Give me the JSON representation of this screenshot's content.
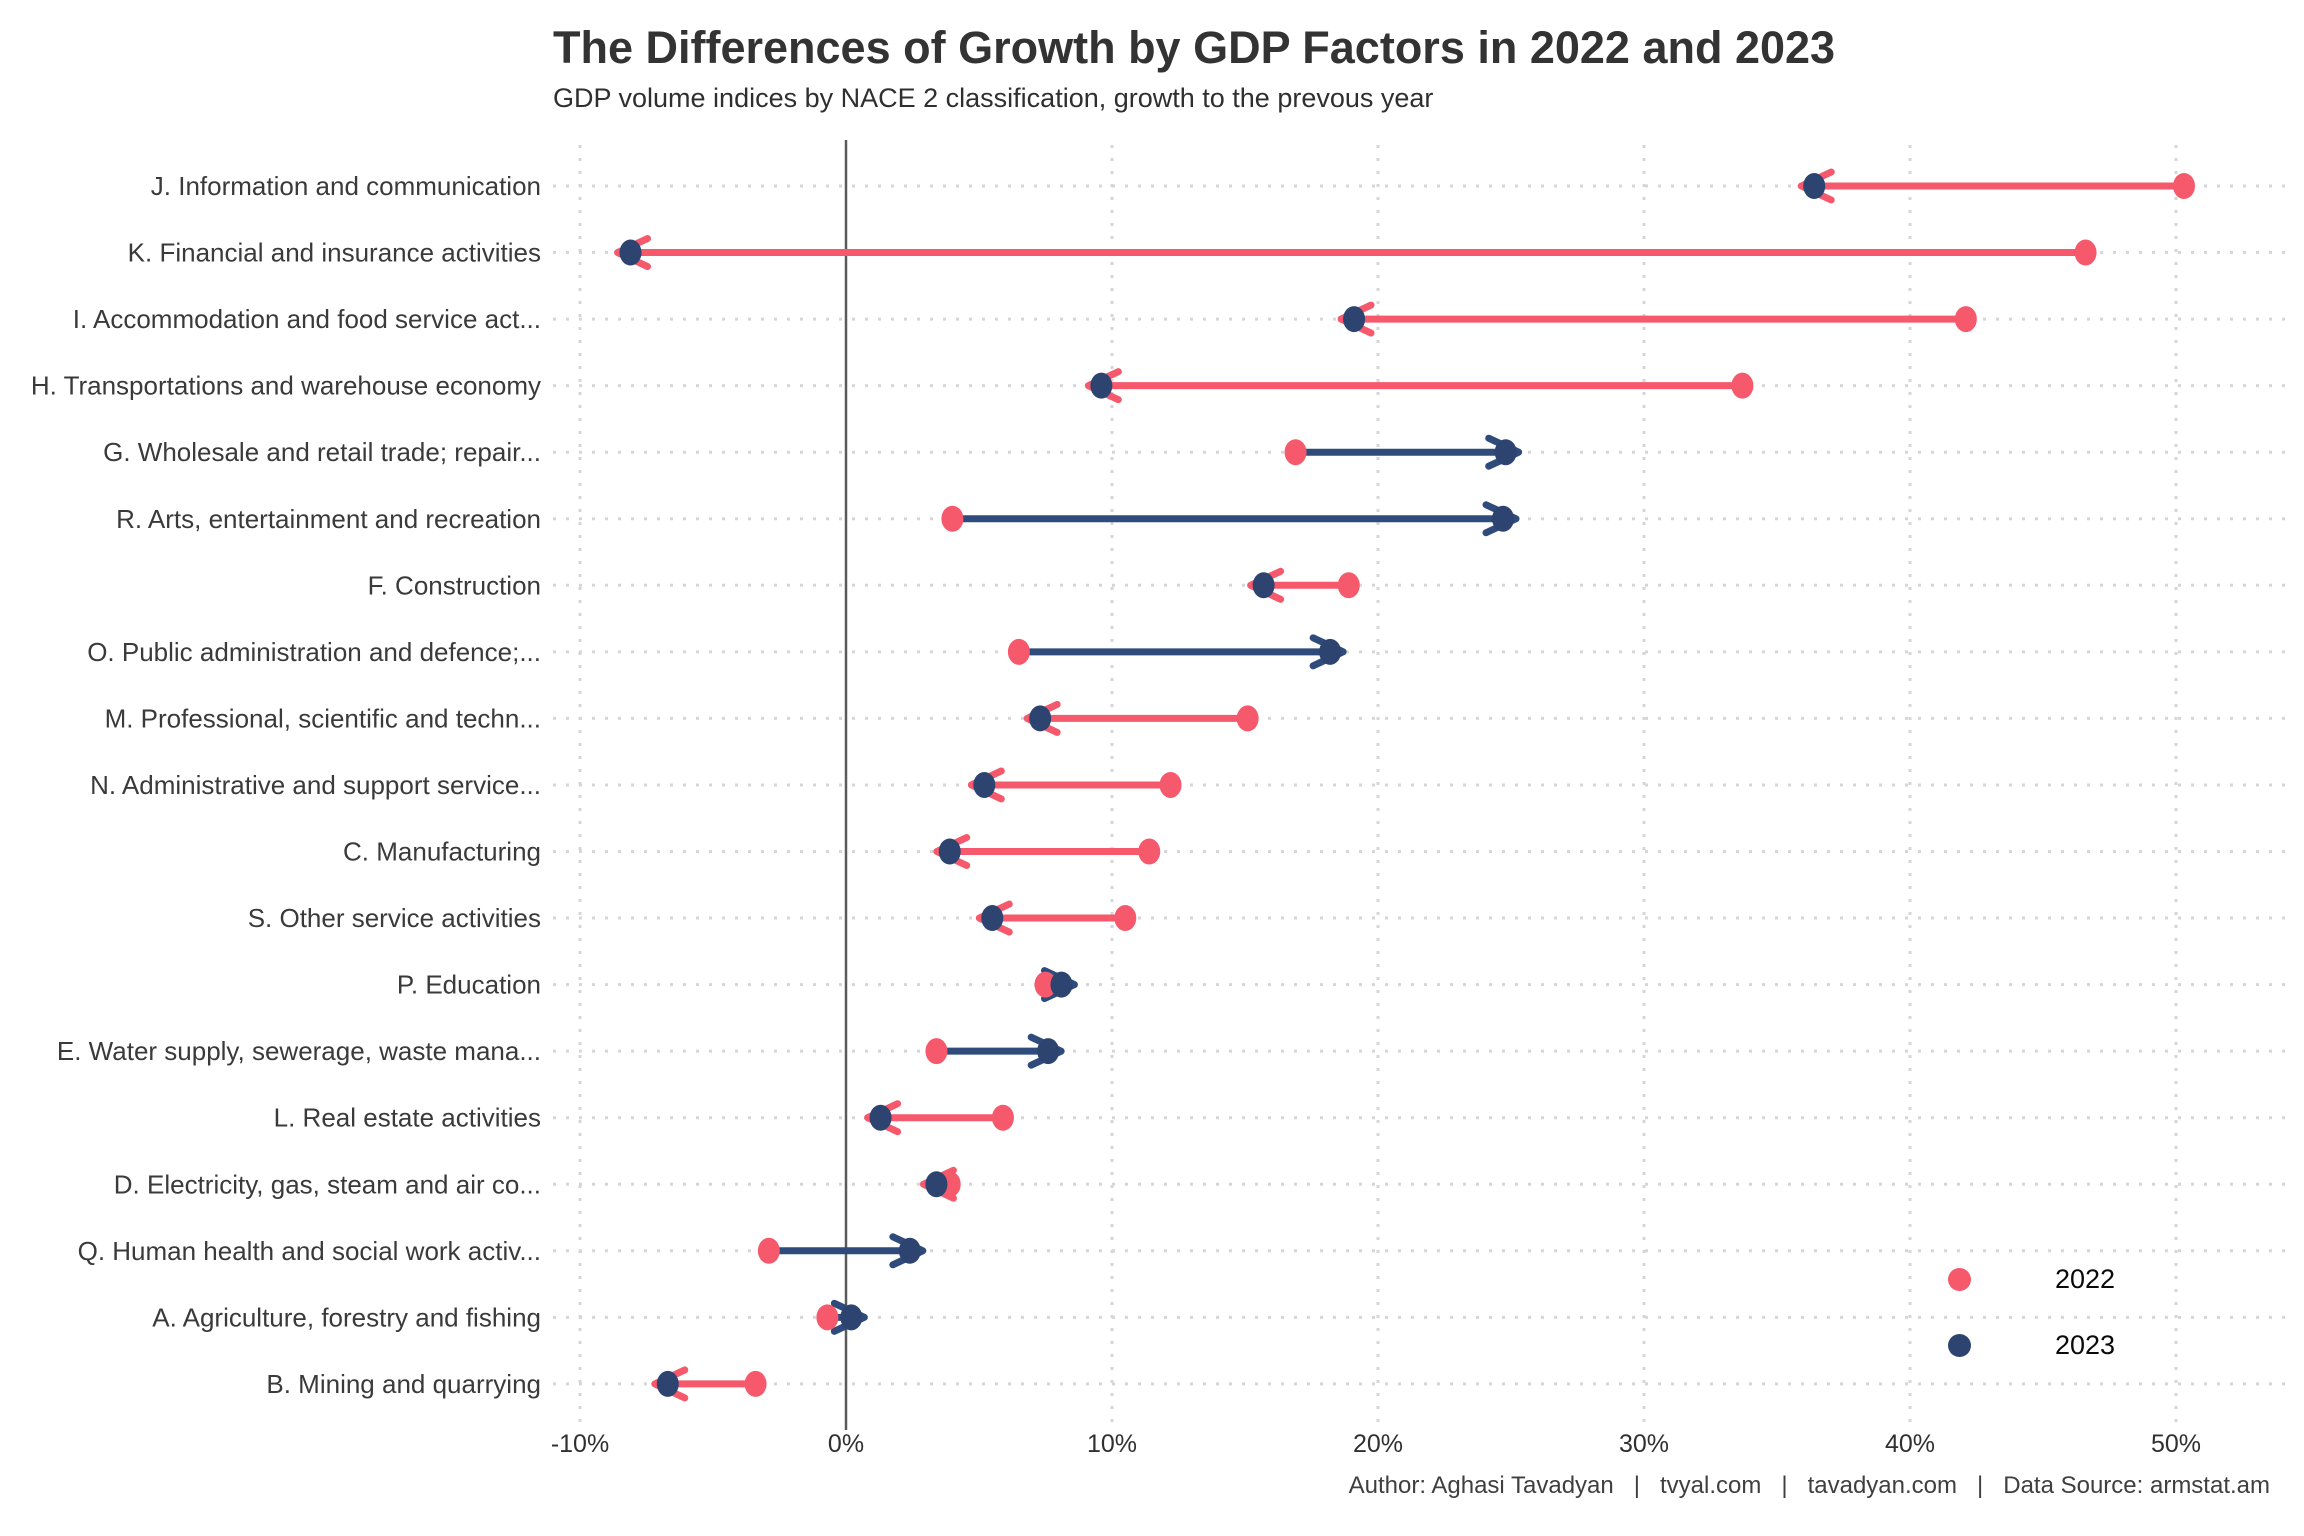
{
  "header": {
    "title": "The Differences of Growth by GDP Factors in 2022 and 2023",
    "subtitle": "GDP volume indices by NACE 2 classification, growth to the prevous year"
  },
  "footer": {
    "credit": "Author: Aghasi Tavadyan   |   tvyal.com   |   tavadyan.com   |   Data Source: armstat.am"
  },
  "chart_data": {
    "type": "dumbbell",
    "orientation": "horizontal",
    "arrow": "from 2022 value to 2023 value",
    "title": "The Differences of Growth by GDP Factors in 2022 and 2023",
    "subtitle": "GDP volume indices by NACE 2 classification, growth to the prevous year",
    "categories": [
      "J. Information and communication",
      "K. Financial and insurance activities",
      "I. Accommodation and food service act...",
      "H. Transportations and warehouse economy",
      "G. Wholesale and retail trade; repair...",
      "R. Arts, entertainment and recreation",
      "F. Construction",
      "O. Public administration and defence;...",
      "M. Professional, scientific and techn...",
      "N. Administrative and support service...",
      "C. Manufacturing",
      "S. Other service activities",
      "P. Education",
      "E. Water supply, sewerage, waste mana...",
      "L. Real estate activities",
      "D. Electricity, gas, steam and air co...",
      "Q. Human health and social work activ...",
      "A. Agriculture, forestry and fishing",
      "B. Mining and quarrying"
    ],
    "series": [
      {
        "name": "2022",
        "color": "#F5596B",
        "values": [
          50.3,
          46.6,
          42.1,
          33.7,
          16.9,
          4.0,
          18.9,
          6.5,
          15.1,
          12.2,
          11.4,
          10.5,
          7.5,
          3.4,
          5.9,
          3.9,
          -2.9,
          -0.7,
          -3.4
        ]
      },
      {
        "name": "2023",
        "color": "#2D4470",
        "values": [
          36.4,
          -8.1,
          19.1,
          9.6,
          24.8,
          24.7,
          15.7,
          18.2,
          7.3,
          5.2,
          3.9,
          5.5,
          8.1,
          7.6,
          1.3,
          3.4,
          2.4,
          0.2,
          -6.7
        ]
      }
    ],
    "x_ticks": [
      {
        "value": -10,
        "label": "-10%"
      },
      {
        "value": 0,
        "label": "0%"
      },
      {
        "value": 10,
        "label": "10%"
      },
      {
        "value": 20,
        "label": "20%"
      },
      {
        "value": 30,
        "label": "30%"
      },
      {
        "value": 40,
        "label": "40%"
      },
      {
        "value": 50,
        "label": "50%"
      }
    ],
    "xlim": [
      -12,
      54
    ],
    "grid": "dotted",
    "grid_color": "#d6d6d6",
    "zero_line_color": "#5a5a5a",
    "increase_color": "#2F4B7C",
    "decrease_color": "#F5596B",
    "legend_position": "bottom-right-inside"
  }
}
